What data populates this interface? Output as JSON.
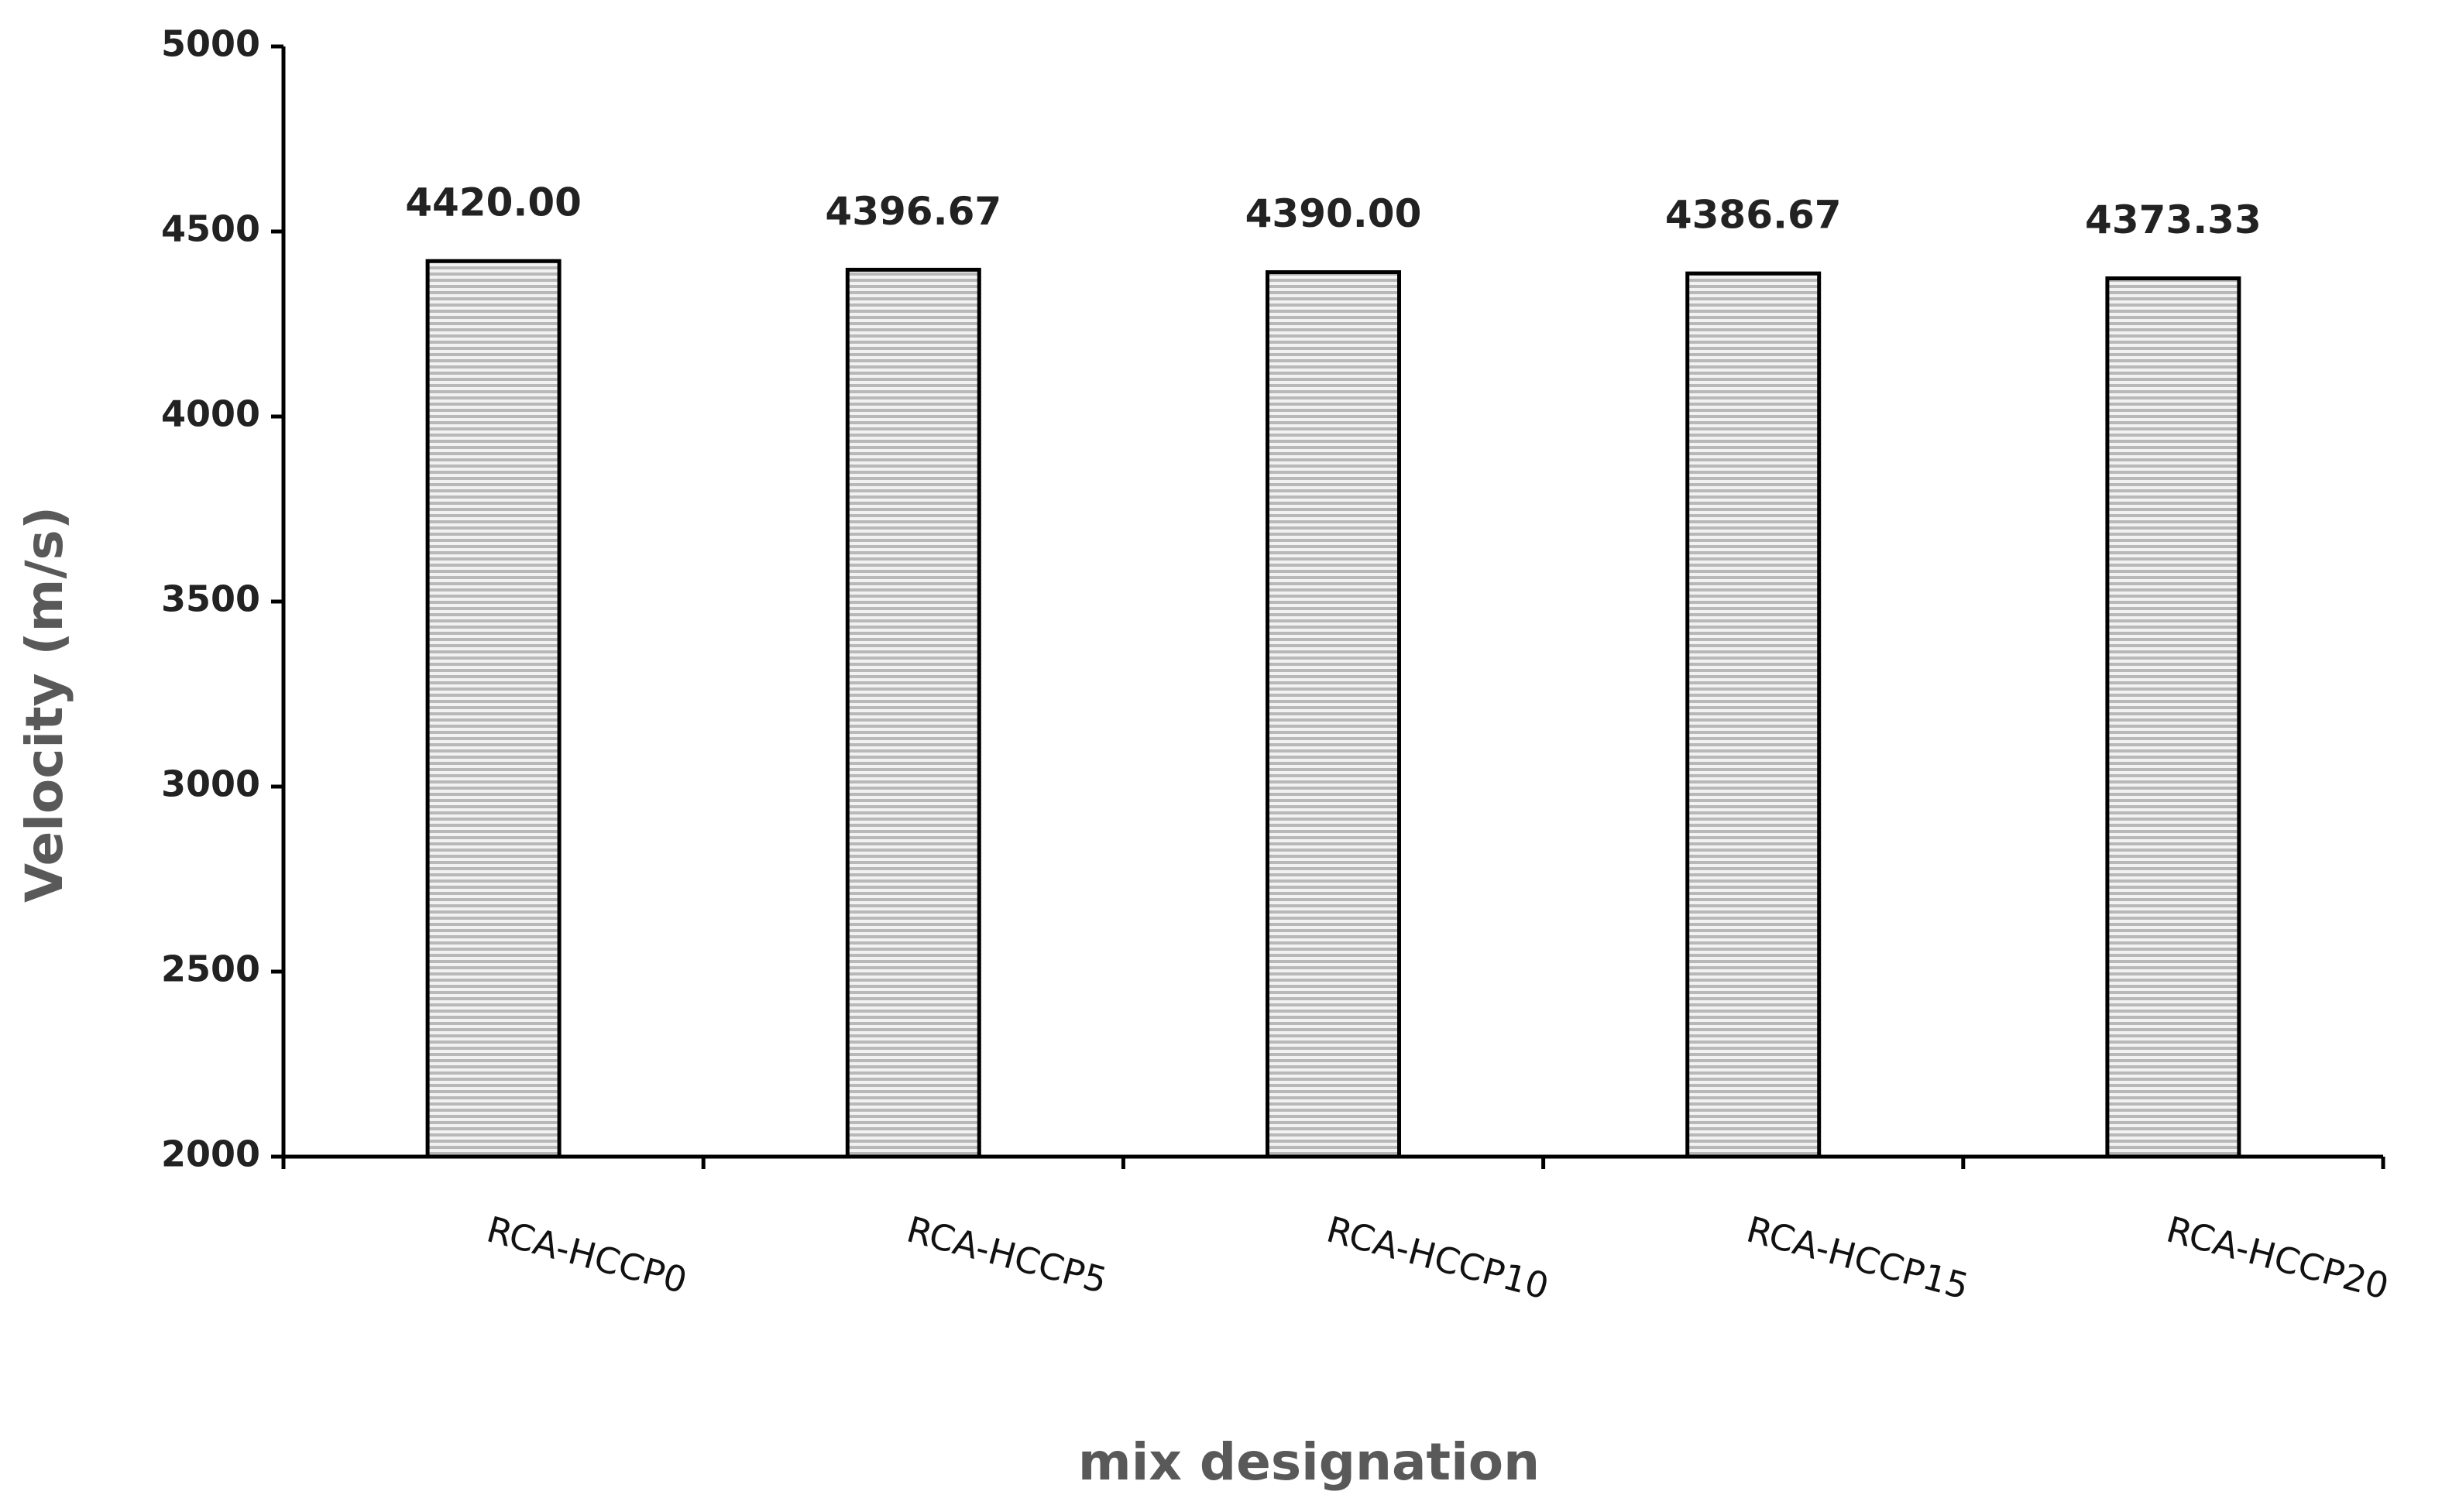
{
  "chart_data": {
    "type": "bar",
    "x_label": "mix designation",
    "y_label": "Velocity (m/s)",
    "categories": [
      "RCA-HCCP0",
      "RCA-HCCP5",
      "RCA-HCCP10",
      "RCA-HCCP15",
      "RCA-HCCP20"
    ],
    "values": [
      4420.0,
      4396.67,
      4390.0,
      4386.67,
      4373.33
    ],
    "value_labels": [
      "4420.00",
      "4396.67",
      "4390.00",
      "4386.67",
      "4373.33"
    ],
    "color": "#b8b8b8",
    "ylim": [
      2000,
      5000
    ],
    "yticks": [
      2000,
      2500,
      3000,
      3500,
      4000,
      4500,
      5000
    ],
    "grid": false
  }
}
